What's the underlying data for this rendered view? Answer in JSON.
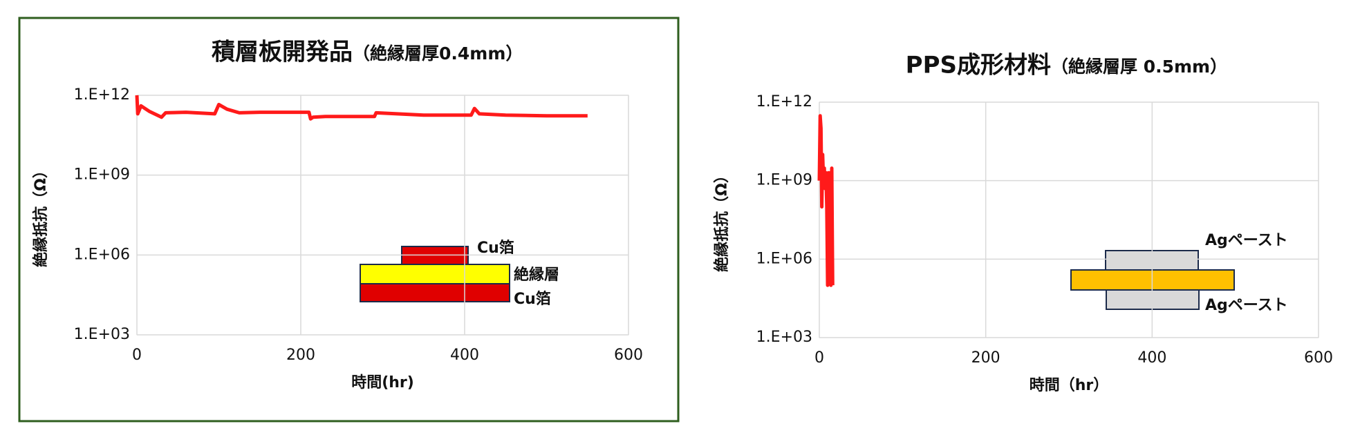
{
  "chart_data": [
    {
      "type": "line",
      "title": "積層板開発品",
      "subtitle": "（絶縁層厚0.4mm）",
      "x_label": "時間(hr)",
      "y_label": "絶縁抵抗（Ω）",
      "log_scale": true,
      "grid": true,
      "color": "#ff1a1a",
      "x": [
        0,
        1,
        5,
        15,
        30,
        35,
        60,
        95,
        100,
        110,
        125,
        150,
        210,
        212,
        215,
        230,
        290,
        292,
        350,
        408,
        412,
        418,
        450,
        500,
        550
      ],
      "values": [
        1000000000000,
        200000000000,
        400000000000,
        250000000000,
        150000000000,
        220000000000,
        230000000000,
        200000000000,
        450000000000,
        300000000000,
        220000000000,
        230000000000,
        230000000000,
        130000000000,
        150000000000,
        160000000000,
        160000000000,
        220000000000,
        180000000000,
        180000000000,
        320000000000,
        200000000000,
        180000000000,
        170000000000,
        170000000000
      ],
      "xlim": [
        0,
        600
      ],
      "xticks": [
        0,
        200,
        400,
        600
      ],
      "ylim": [
        1000,
        1000000000000
      ],
      "yticks": [
        {
          "value": 1000,
          "label": "1.E+03"
        },
        {
          "value": 1000000,
          "label": "1.E+06"
        },
        {
          "value": 1000000000,
          "label": "1.E+09"
        },
        {
          "value": 1000000000000,
          "label": "1.E+12"
        }
      ],
      "annotations": [
        "Cu箔",
        "絶縁層",
        "Cu箔"
      ]
    },
    {
      "type": "line",
      "title": "PPS成形材料",
      "subtitle": "（絶縁層厚 0.5mm）",
      "x_label": "時間（hr）",
      "y_label": "絶縁抵抗（Ω）",
      "log_scale": true,
      "grid": true,
      "color": "#ff1a1a",
      "x": [
        0,
        1,
        2,
        3,
        4,
        5,
        6,
        7,
        8,
        9,
        10,
        11,
        12,
        13,
        14,
        15,
        16
      ],
      "values": [
        1000000000,
        300000000000,
        100000000000,
        100000000,
        10000000000,
        1000000000,
        3000000000,
        500000000,
        2000000000,
        100000000,
        100000,
        2000000000,
        100000000,
        2000000000,
        100000,
        3000000000,
        100000
      ],
      "xlim": [
        0,
        600
      ],
      "xticks": [
        0,
        200,
        400,
        600
      ],
      "ylim": [
        1000,
        1000000000000
      ],
      "yticks": [
        {
          "value": 1000,
          "label": "1.E+03"
        },
        {
          "value": 1000000,
          "label": "1.E+06"
        },
        {
          "value": 1000000000,
          "label": "1.E+09"
        },
        {
          "value": 1000000000000,
          "label": "1.E+12"
        }
      ],
      "annotations": [
        "Agペースト",
        "Agペースト"
      ]
    }
  ]
}
